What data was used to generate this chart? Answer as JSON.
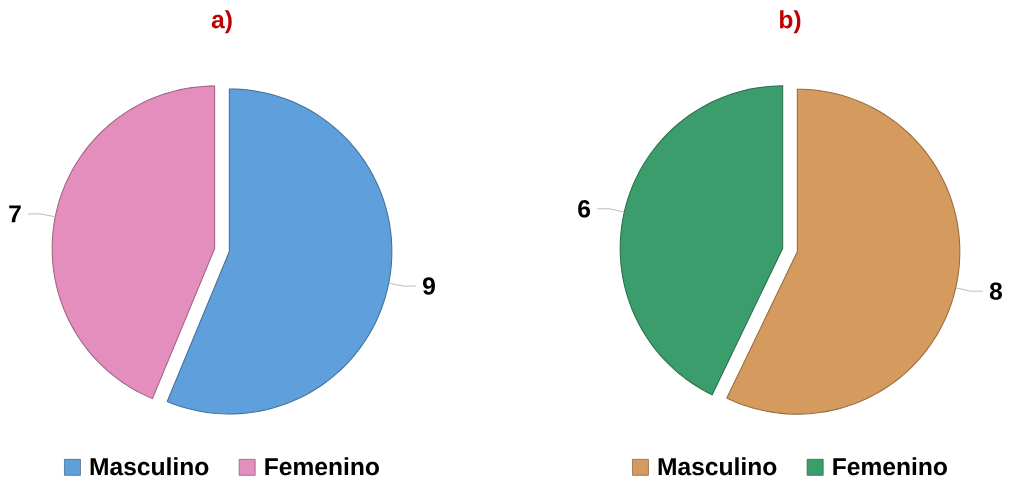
{
  "chart_data": [
    {
      "type": "pie",
      "title": "a)",
      "categories": [
        "Masculino",
        "Femenino"
      ],
      "values": [
        9,
        7
      ],
      "colors": [
        "#5fa0dc",
        "#e38ebd"
      ],
      "data_labels": true,
      "legend": "bottom"
    },
    {
      "type": "pie",
      "title": "b)",
      "categories": [
        "Masculino",
        "Femenino"
      ],
      "values": [
        8,
        6
      ],
      "colors": [
        "#d59a5e",
        "#3c9d6c"
      ],
      "data_labels": true,
      "legend": "bottom"
    }
  ]
}
